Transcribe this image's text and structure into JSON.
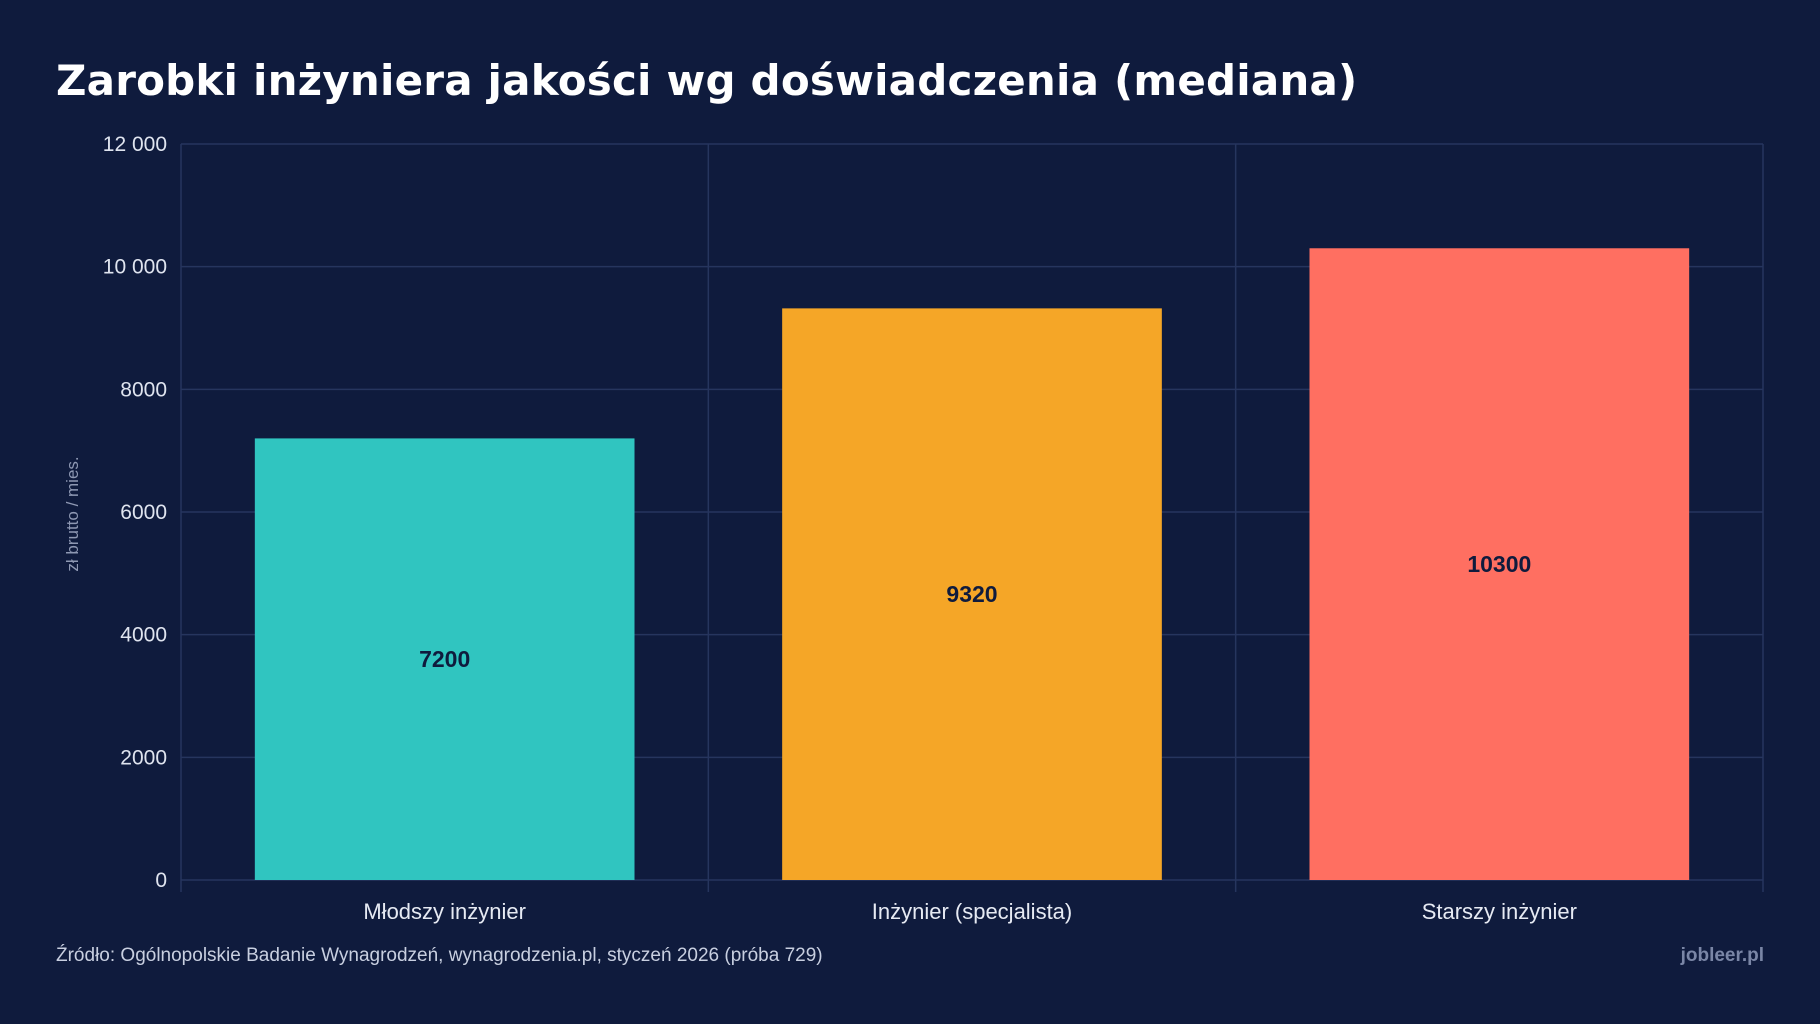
{
  "title": "Zarobki inżyniera jakości wg doświadczenia (mediana)",
  "footer": {
    "source": "Źródło: Ogólnopolskie Badanie Wynagrodzeń, wynagrodzenia.pl, styczeń 2026 (próba 729)",
    "brand": "jobleer.pl"
  },
  "chart_data": {
    "type": "bar",
    "title": "Zarobki inżyniera jakości wg doświadczenia (mediana)",
    "categories": [
      "Młodszy inżynier",
      "Inżynier (specjalista)",
      "Starszy inżynier"
    ],
    "values": [
      7200,
      9320,
      10300
    ],
    "value_labels": [
      "7200",
      "9320",
      "10300"
    ],
    "colors": [
      "#30c5c0",
      "#f5a627",
      "#ff6f61"
    ],
    "xlabel": "",
    "ylabel": "zł brutto / mies.",
    "ylim": [
      0,
      12000
    ],
    "yticks": [
      0,
      2000,
      4000,
      6000,
      8000,
      10000,
      12000
    ],
    "ytick_labels": [
      "0",
      "2000",
      "4000",
      "6000",
      "8000",
      "10 000",
      "12 000"
    ],
    "grid": true,
    "legend": "none"
  }
}
